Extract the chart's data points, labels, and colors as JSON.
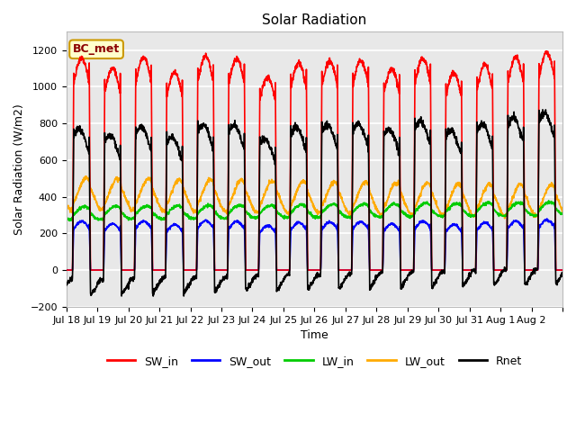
{
  "title": "Solar Radiation",
  "ylabel": "Solar Radiation (W/m2)",
  "xlabel": "Time",
  "annotation": "BC_met",
  "ylim": [
    -200,
    1300
  ],
  "yticks": [
    -200,
    0,
    200,
    400,
    600,
    800,
    1000,
    1200
  ],
  "num_days": 16,
  "colors": {
    "SW_in": "#ff0000",
    "SW_out": "#0000ff",
    "LW_in": "#00cc00",
    "LW_out": "#ffaa00",
    "Rnet": "#000000"
  },
  "line_width": 1.2,
  "tick_labels": [
    "Jul 18",
    "Jul 19",
    "Jul 20",
    "Jul 21",
    "Jul 22",
    "Jul 23",
    "Jul 24",
    "Jul 25",
    "Jul 26",
    "Jul 27",
    "Jul 28",
    "Jul 29",
    "Jul 30",
    "Jul 31",
    "Aug 1",
    "Aug 2"
  ],
  "background_color": "#e8e8e8",
  "grid_color": "#ffffff",
  "fig_color": "#ffffff"
}
